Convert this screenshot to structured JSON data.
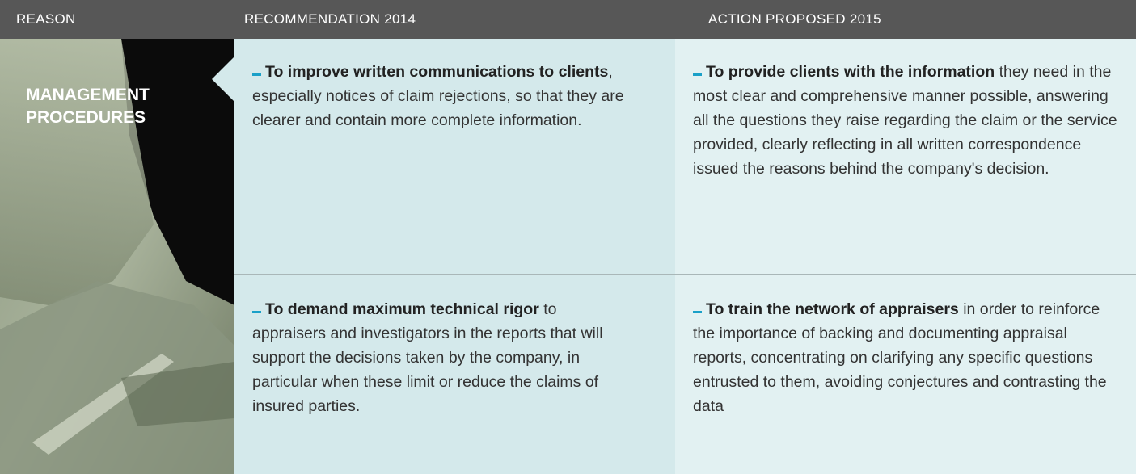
{
  "header": [
    "REASON",
    "RECOMMENDATION 2014",
    "ACTION PROPOSED 2015"
  ],
  "reason": "MANAGEMENT PROCEDURES",
  "rows": [
    {
      "recommendation": {
        "lead": "To improve written communications to clients",
        "text": ", especially notices of claim rejections, so that they are clearer and contain more complete information."
      },
      "action": {
        "lead": "To provide clients with the information",
        "text": " they need in the most clear and comprehensive manner possible, answering all the questions they raise regarding the claim or the service provided, clearly reflecting in all written correspondence issued the reasons behind the company's decision."
      }
    },
    {
      "recommendation": {
        "lead": "To demand maximum technical rigor",
        "text": " to appraisers and investigators in the reports that will support the decisions taken by the company, in particular when these limit or reduce the claims of insured parties."
      },
      "action": {
        "lead": "To train the network of appraisers",
        "text": " in order to reinforce the importance of backing and documenting appraisal reports, concentrating on clarifying any specific questions entrusted to them, avoiding conjectures and contrasting the data"
      }
    }
  ]
}
